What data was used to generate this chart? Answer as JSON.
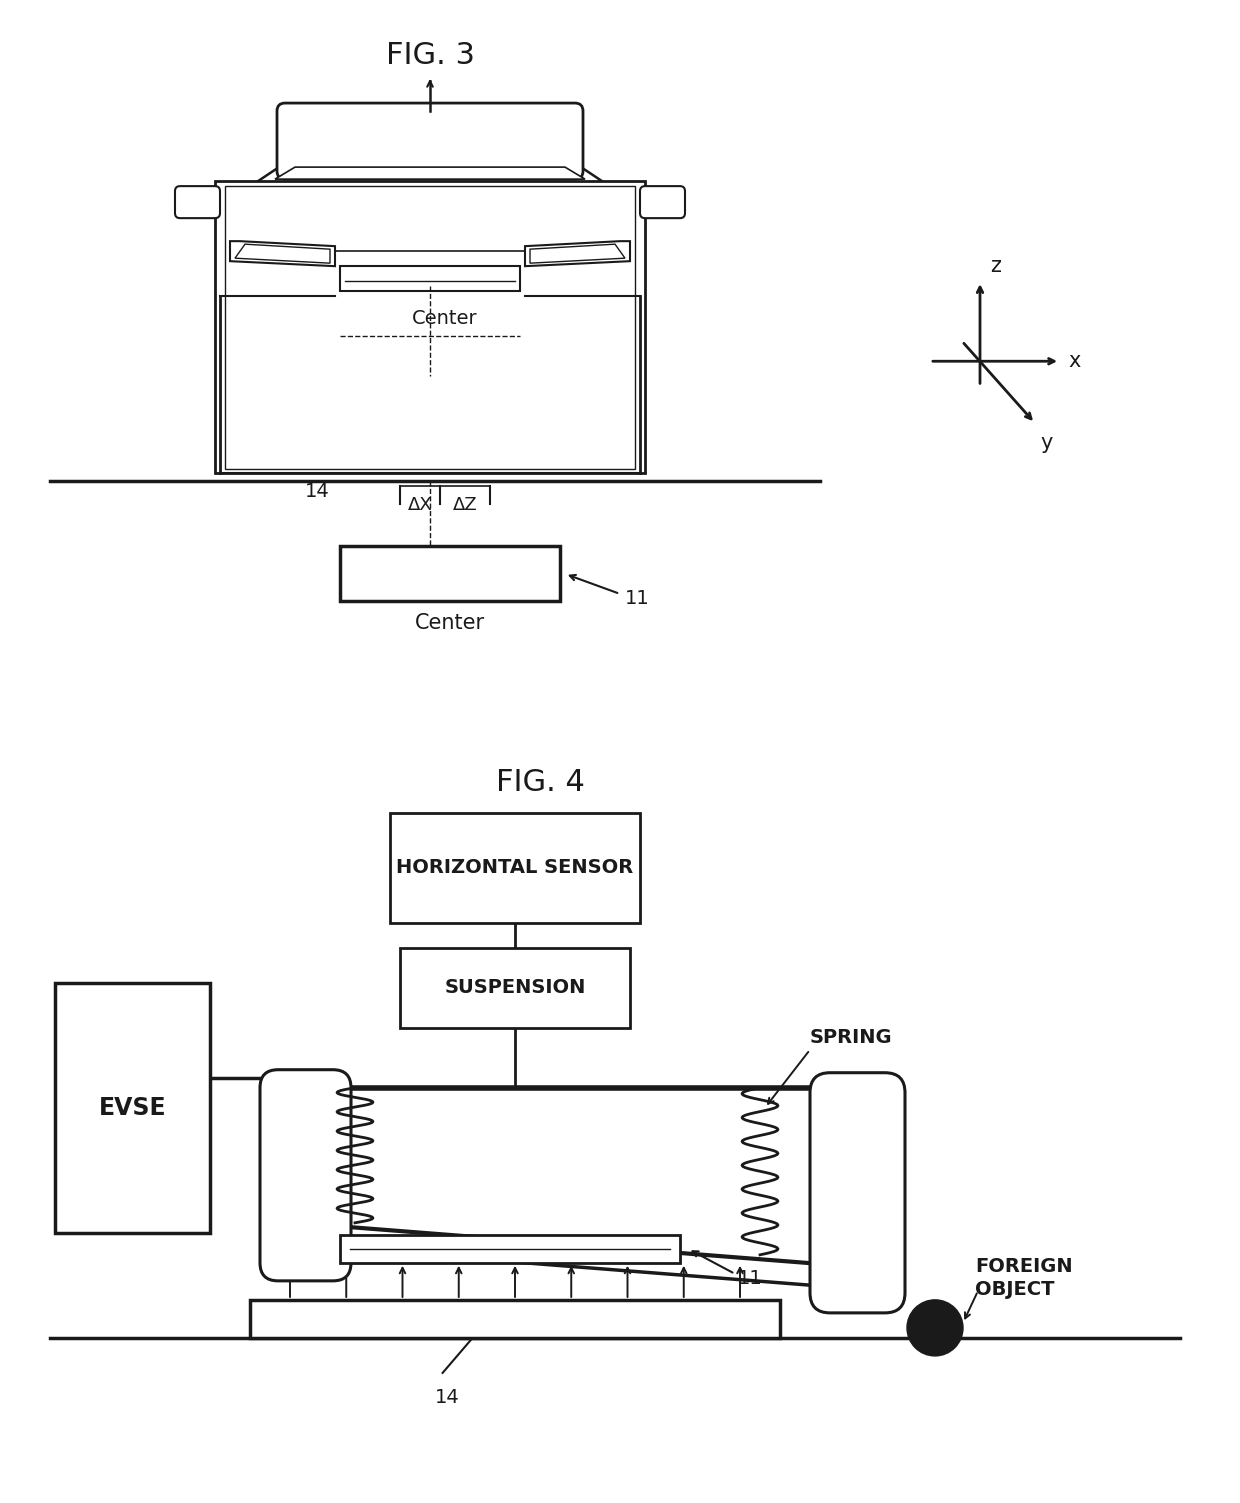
{
  "fig3_title": "FIG. 3",
  "fig4_title": "FIG. 4",
  "bg_color": "#ffffff",
  "line_color": "#1a1a1a",
  "text_color": "#1a1a1a",
  "fig3_labels": {
    "car_center": "Center",
    "pad_center": "Center",
    "label_14": "14",
    "label_11": "11",
    "label_dx": "ΔX",
    "label_dz": "ΔZ",
    "axis_x": "x",
    "axis_y": "y",
    "axis_z": "z"
  },
  "fig4_labels": {
    "evse": "EVSE",
    "horiz_sensor": "HORIZONTAL SENSOR",
    "suspension": "SUSPENSION",
    "spring": "SPRING",
    "foreign_object": "FOREIGN\nOBJECT",
    "label_11": "11",
    "label_14": "14"
  }
}
